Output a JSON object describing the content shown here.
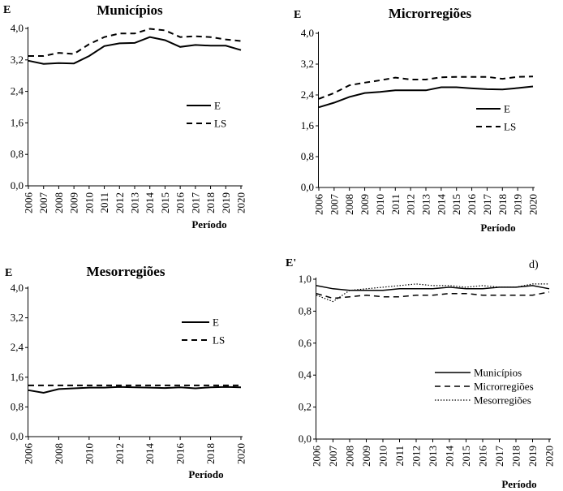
{
  "chart_data": [
    {
      "type": "line",
      "title": "Municípios",
      "ylabel": "E",
      "xlabel": "Período",
      "x": [
        2006,
        2007,
        2008,
        2009,
        2010,
        2011,
        2012,
        2013,
        2014,
        2015,
        2016,
        2017,
        2018,
        2019,
        2020
      ],
      "x_tick_labels": [
        "2006",
        "2007",
        "2008",
        "2009",
        "2010",
        "2011",
        "2012",
        "2013",
        "2014",
        "2015",
        "2016",
        "2017",
        "2018",
        "2019",
        "2020"
      ],
      "ylim": [
        0,
        4
      ],
      "y_tick_labels": [
        "0,0",
        "0,8",
        "1,6",
        "2,4",
        "3,2",
        "4,0"
      ],
      "legend_position": "center-right",
      "series": [
        {
          "name": "E",
          "style": "solid",
          "values": [
            3.18,
            3.1,
            3.12,
            3.11,
            3.3,
            3.55,
            3.62,
            3.63,
            3.78,
            3.7,
            3.53,
            3.58,
            3.56,
            3.56,
            3.45
          ]
        },
        {
          "name": "LS",
          "style": "dashed",
          "values": [
            3.3,
            3.3,
            3.38,
            3.35,
            3.6,
            3.78,
            3.87,
            3.87,
            3.99,
            3.95,
            3.78,
            3.8,
            3.78,
            3.72,
            3.68
          ]
        }
      ]
    },
    {
      "type": "line",
      "title": "Microrregiões",
      "ylabel": "E",
      "xlabel": "Período",
      "x": [
        2006,
        2007,
        2008,
        2009,
        2010,
        2011,
        2012,
        2013,
        2014,
        2015,
        2016,
        2017,
        2018,
        2019,
        2020
      ],
      "x_tick_labels": [
        "2006",
        "2007",
        "2008",
        "2009",
        "2010",
        "2011",
        "2012",
        "2013",
        "2014",
        "2015",
        "2016",
        "2017",
        "2018",
        "2019",
        "2020"
      ],
      "ylim": [
        0,
        4
      ],
      "y_tick_labels": [
        "0,0",
        "0,8",
        "1,6",
        "2,4",
        "3,2",
        "4,0"
      ],
      "legend_position": "center-right",
      "series": [
        {
          "name": "E",
          "style": "solid",
          "values": [
            2.08,
            2.2,
            2.35,
            2.45,
            2.48,
            2.52,
            2.52,
            2.52,
            2.6,
            2.6,
            2.57,
            2.55,
            2.54,
            2.58,
            2.62
          ]
        },
        {
          "name": "LS",
          "style": "dashed",
          "values": [
            2.3,
            2.45,
            2.65,
            2.72,
            2.78,
            2.85,
            2.8,
            2.8,
            2.86,
            2.87,
            2.87,
            2.87,
            2.82,
            2.87,
            2.88
          ]
        }
      ]
    },
    {
      "type": "line",
      "title": "Mesorregiões",
      "ylabel": "E",
      "xlabel": "Período",
      "x": [
        2006,
        2007,
        2008,
        2009,
        2010,
        2011,
        2012,
        2013,
        2014,
        2015,
        2016,
        2017,
        2018,
        2019,
        2020
      ],
      "x_tick_labels": [
        "2006",
        "2008",
        "2010",
        "2012",
        "2014",
        "2016",
        "2018",
        "2020"
      ],
      "x_tick_values": [
        2006,
        2008,
        2010,
        2012,
        2014,
        2016,
        2018,
        2020
      ],
      "ylim": [
        0,
        4
      ],
      "y_tick_labels": [
        "0,0",
        "0,8",
        "1,6",
        "2,4",
        "3,2",
        "4,0"
      ],
      "legend_position": "top-right",
      "series": [
        {
          "name": "E",
          "style": "solid",
          "values": [
            1.25,
            1.18,
            1.28,
            1.3,
            1.32,
            1.32,
            1.34,
            1.33,
            1.32,
            1.31,
            1.33,
            1.3,
            1.33,
            1.34,
            1.33
          ]
        },
        {
          "name": "LS",
          "style": "dashed",
          "values": [
            1.38,
            1.38,
            1.38,
            1.38,
            1.38,
            1.38,
            1.38,
            1.38,
            1.38,
            1.38,
            1.38,
            1.38,
            1.38,
            1.38,
            1.38
          ]
        }
      ]
    },
    {
      "type": "line",
      "title": "",
      "panel_label": "d)",
      "ylabel": "E'",
      "xlabel": "Período",
      "x": [
        2006,
        2007,
        2008,
        2009,
        2010,
        2011,
        2012,
        2013,
        2014,
        2015,
        2016,
        2017,
        2018,
        2019,
        2020
      ],
      "x_tick_labels": [
        "2006",
        "2007",
        "2008",
        "2009",
        "2010",
        "2011",
        "2012",
        "2013",
        "2014",
        "2015",
        "2016",
        "2017",
        "2018",
        "2019",
        "2020"
      ],
      "ylim": [
        0,
        1
      ],
      "y_tick_labels": [
        "0,0",
        "0,2",
        "0,4",
        "0,6",
        "0,8",
        "1,0"
      ],
      "legend_position": "lower-right",
      "series": [
        {
          "name": "Municípios",
          "style": "solid",
          "values": [
            0.96,
            0.94,
            0.93,
            0.93,
            0.93,
            0.94,
            0.94,
            0.94,
            0.95,
            0.94,
            0.94,
            0.95,
            0.95,
            0.96,
            0.94
          ]
        },
        {
          "name": "Microrregiões",
          "style": "dashed",
          "values": [
            0.91,
            0.88,
            0.89,
            0.9,
            0.89,
            0.89,
            0.9,
            0.9,
            0.91,
            0.91,
            0.9,
            0.9,
            0.9,
            0.9,
            0.92
          ]
        },
        {
          "name": "Mesorregiões",
          "style": "dotted",
          "values": [
            0.9,
            0.86,
            0.93,
            0.94,
            0.95,
            0.96,
            0.97,
            0.96,
            0.96,
            0.95,
            0.96,
            0.95,
            0.95,
            0.97,
            0.97
          ]
        }
      ]
    }
  ]
}
